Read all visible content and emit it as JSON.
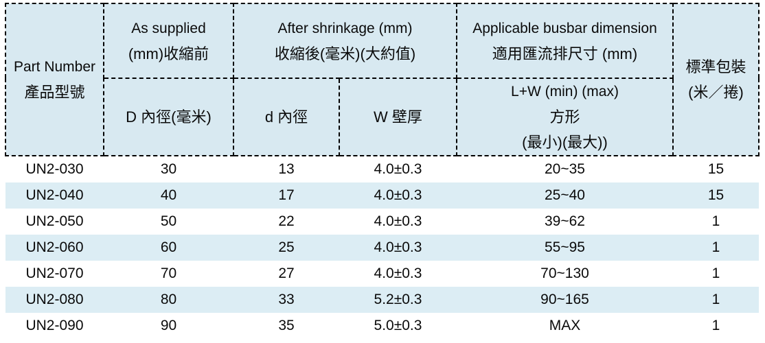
{
  "colors": {
    "header_bg": "#d8e9f1",
    "stripe_bg": "#dcedf4",
    "border": "#000000",
    "text": "#0a0a0a",
    "page_bg": "#ffffff"
  },
  "table": {
    "header": {
      "part_number_en": "Part Number",
      "part_number_zh": "產品型號",
      "as_supplied_en": "As supplied",
      "as_supplied_zh": "(mm)收縮前",
      "as_supplied_sub": "D 內徑(毫米)",
      "after_shrinkage_en": "After shrinkage (mm)",
      "after_shrinkage_zh": "收縮後(毫米)(大約值)",
      "d_inner_sub": "d 內徑",
      "w_wall_sub": "W 壁厚",
      "busbar_en": "Applicable busbar dimension",
      "busbar_zh": "適用匯流排尺寸 (mm)",
      "busbar_sub_line1": "L+W (min) (max)",
      "busbar_sub_line2": "方形",
      "busbar_sub_line3": "(最小)(最大))",
      "packing_line1": "標準包裝",
      "packing_line2": "(米／捲)"
    },
    "rows": [
      {
        "part": "UN2-030",
        "d_supplied": "30",
        "d_shrunk": "13",
        "wall": "4.0±0.3",
        "busbar": "20~35",
        "packing": "15"
      },
      {
        "part": "UN2-040",
        "d_supplied": "40",
        "d_shrunk": "17",
        "wall": "4.0±0.3",
        "busbar": "25~40",
        "packing": "15"
      },
      {
        "part": "UN2-050",
        "d_supplied": "50",
        "d_shrunk": "22",
        "wall": "4.0±0.3",
        "busbar": "39~62",
        "packing": "1"
      },
      {
        "part": "UN2-060",
        "d_supplied": "60",
        "d_shrunk": "25",
        "wall": "4.0±0.3",
        "busbar": "55~95",
        "packing": "1"
      },
      {
        "part": "UN2-070",
        "d_supplied": "70",
        "d_shrunk": "27",
        "wall": "4.0±0.3",
        "busbar": "70~130",
        "packing": "1"
      },
      {
        "part": "UN2-080",
        "d_supplied": "80",
        "d_shrunk": "33",
        "wall": "5.2±0.3",
        "busbar": "90~165",
        "packing": "1"
      },
      {
        "part": "UN2-090",
        "d_supplied": "90",
        "d_shrunk": "35",
        "wall": "5.0±0.3",
        "busbar": "MAX",
        "packing": "1"
      }
    ]
  }
}
